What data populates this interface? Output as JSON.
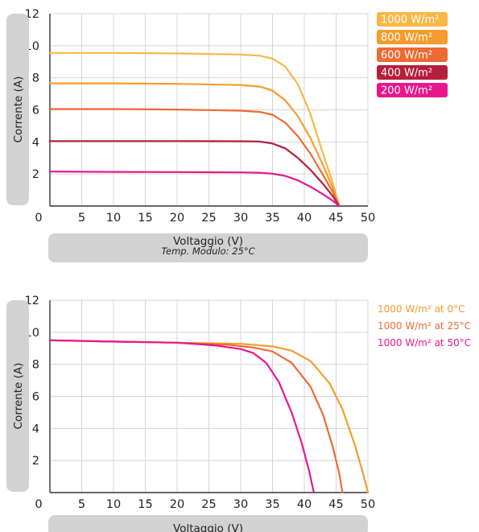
{
  "chart_data": [
    {
      "type": "line",
      "title": "",
      "xlabel": "Voltaggio (V)",
      "xlabel_note": "Temp. Modulo: 25°C",
      "ylabel": "Corrente (A)",
      "xlim": [
        0,
        50
      ],
      "ylim": [
        0,
        12
      ],
      "xticks": [
        0,
        5,
        10,
        15,
        20,
        25,
        30,
        35,
        40,
        45,
        50
      ],
      "yticks": [
        0,
        2,
        4,
        6,
        8,
        10,
        12
      ],
      "grid": true,
      "legend_position": "right",
      "legend_style": "badges",
      "series": [
        {
          "name": "1000 W/m²",
          "color": "#F9B746",
          "x": [
            0,
            10,
            20,
            30,
            33,
            35,
            37,
            39,
            41,
            43,
            44.5,
            45.5
          ],
          "y": [
            9.55,
            9.55,
            9.52,
            9.45,
            9.38,
            9.2,
            8.7,
            7.6,
            5.7,
            3.2,
            1.4,
            0
          ]
        },
        {
          "name": "800 W/m²",
          "color": "#F59C2C",
          "x": [
            0,
            10,
            20,
            30,
            33,
            35,
            37,
            39,
            41,
            43,
            44.5,
            45.5
          ],
          "y": [
            7.65,
            7.65,
            7.62,
            7.55,
            7.45,
            7.2,
            6.6,
            5.6,
            4.2,
            2.5,
            1.1,
            0
          ]
        },
        {
          "name": "600 W/m²",
          "color": "#EE6A33",
          "x": [
            0,
            10,
            20,
            30,
            33,
            35,
            37,
            39,
            41,
            43,
            44.5,
            45.5
          ],
          "y": [
            6.05,
            6.05,
            6.02,
            5.95,
            5.87,
            5.7,
            5.2,
            4.35,
            3.25,
            1.9,
            0.85,
            0
          ]
        },
        {
          "name": "400 W/m²",
          "color": "#B41F3A",
          "x": [
            0,
            10,
            20,
            30,
            33,
            35,
            37,
            39,
            41,
            43,
            44.5,
            45.5
          ],
          "y": [
            4.05,
            4.05,
            4.05,
            4.04,
            4.02,
            3.9,
            3.6,
            3.0,
            2.25,
            1.35,
            0.6,
            0
          ]
        },
        {
          "name": "200 W/m²",
          "color": "#E8178E",
          "x": [
            0,
            10,
            20,
            30,
            33,
            35,
            37,
            39,
            41,
            43,
            44.5,
            45.5
          ],
          "y": [
            2.15,
            2.13,
            2.12,
            2.1,
            2.08,
            2.02,
            1.88,
            1.6,
            1.2,
            0.72,
            0.32,
            0
          ]
        }
      ]
    },
    {
      "type": "line",
      "title": "",
      "xlabel": "Voltaggio (V)",
      "ylabel": "Corrente (A)",
      "xlim": [
        0,
        50
      ],
      "ylim": [
        0,
        12
      ],
      "xticks": [
        0,
        5,
        10,
        15,
        20,
        25,
        30,
        35,
        40,
        45,
        50
      ],
      "yticks": [
        0,
        2,
        4,
        6,
        8,
        10,
        12
      ],
      "grid": true,
      "legend_position": "right",
      "legend_style": "colored-text",
      "series": [
        {
          "name": "1000 W/m² at 0°C",
          "color": "#F59C2C",
          "x": [
            0,
            10,
            20,
            30,
            35,
            38,
            41,
            44,
            46,
            48,
            49.3,
            50
          ],
          "y": [
            9.5,
            9.42,
            9.35,
            9.28,
            9.12,
            8.85,
            8.2,
            6.8,
            5.2,
            2.9,
            1.1,
            0
          ]
        },
        {
          "name": "1000 W/m² at 25°C",
          "color": "#EE6A33",
          "x": [
            0,
            10,
            20,
            28,
            32,
            35,
            38,
            41,
            43,
            44.5,
            45.5,
            46
          ],
          "y": [
            9.5,
            9.42,
            9.35,
            9.22,
            9.05,
            8.8,
            8.1,
            6.6,
            4.8,
            2.8,
            1.2,
            0
          ]
        },
        {
          "name": "1000 W/m² at 50°C",
          "color": "#E8178E",
          "x": [
            0,
            10,
            20,
            26,
            30,
            32,
            34,
            36,
            38,
            39.5,
            40.8,
            41.5
          ],
          "y": [
            9.5,
            9.42,
            9.35,
            9.18,
            8.95,
            8.7,
            8.1,
            6.9,
            5.0,
            3.2,
            1.3,
            0
          ]
        }
      ]
    }
  ]
}
